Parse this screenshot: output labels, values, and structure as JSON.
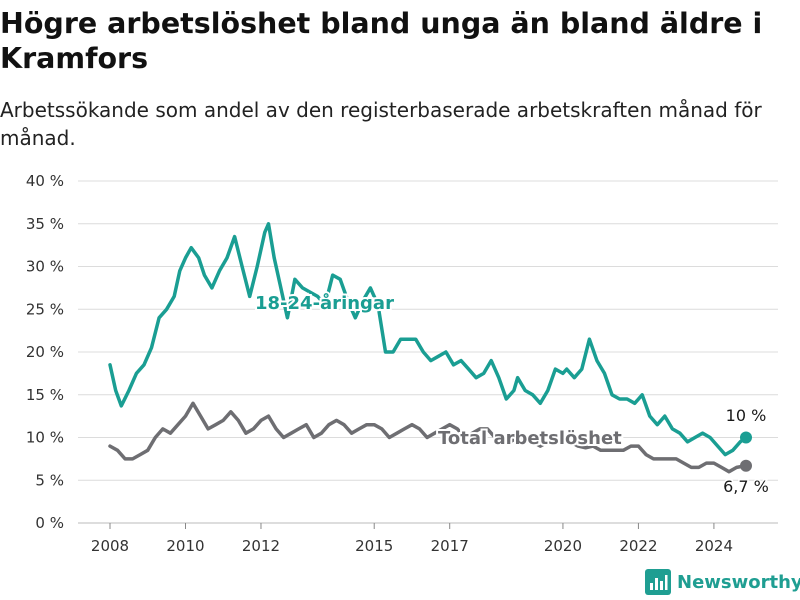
{
  "title": "Högre arbetslöshet bland unga än bland äldre i Kramfors",
  "subtitle": "Arbetssökande som andel av den registerbaserade arbetskraften månad för månad.",
  "brand": {
    "name": "Newsworthy"
  },
  "colors": {
    "youth": "#1a9e93",
    "total": "#6e6e72",
    "grid": "#dcdcdc",
    "axis": "#333333"
  },
  "chart_data": {
    "type": "line",
    "x_ticks": [
      "2008",
      "2010",
      "2012",
      "2015",
      "2017",
      "2020",
      "2022",
      "2024"
    ],
    "y_ticks": [
      "0 %",
      "5 %",
      "10 %",
      "15 %",
      "20 %",
      "25 %",
      "30 %",
      "35 %",
      "40 %"
    ],
    "ylim": [
      0,
      40
    ],
    "series": [
      {
        "name": "18-24-åringar",
        "end_label": "10 %",
        "points": [
          [
            2008.0,
            18.5
          ],
          [
            2008.15,
            15.5
          ],
          [
            2008.3,
            13.7
          ],
          [
            2008.5,
            15.5
          ],
          [
            2008.7,
            17.5
          ],
          [
            2008.9,
            18.5
          ],
          [
            2009.1,
            20.5
          ],
          [
            2009.3,
            24.0
          ],
          [
            2009.5,
            25.0
          ],
          [
            2009.7,
            26.5
          ],
          [
            2009.85,
            29.5
          ],
          [
            2010.0,
            31.0
          ],
          [
            2010.15,
            32.2
          ],
          [
            2010.35,
            31.0
          ],
          [
            2010.5,
            29.0
          ],
          [
            2010.7,
            27.5
          ],
          [
            2010.9,
            29.5
          ],
          [
            2011.1,
            31.0
          ],
          [
            2011.3,
            33.5
          ],
          [
            2011.5,
            30.0
          ],
          [
            2011.7,
            26.5
          ],
          [
            2011.9,
            30.0
          ],
          [
            2012.1,
            34.0
          ],
          [
            2012.2,
            35.0
          ],
          [
            2012.35,
            31.0
          ],
          [
            2012.5,
            28.0
          ],
          [
            2012.7,
            24.0
          ],
          [
            2012.9,
            28.5
          ],
          [
            2013.1,
            27.5
          ],
          [
            2013.3,
            27.0
          ],
          [
            2013.5,
            26.5
          ],
          [
            2013.7,
            25.5
          ],
          [
            2013.9,
            29.0
          ],
          [
            2014.1,
            28.5
          ],
          [
            2014.3,
            26.0
          ],
          [
            2014.5,
            24.0
          ],
          [
            2014.7,
            26.0
          ],
          [
            2014.9,
            27.5
          ],
          [
            2015.1,
            25.5
          ],
          [
            2015.3,
            20.0
          ],
          [
            2015.5,
            20.0
          ],
          [
            2015.7,
            21.5
          ],
          [
            2015.9,
            21.5
          ],
          [
            2016.1,
            21.5
          ],
          [
            2016.3,
            20.0
          ],
          [
            2016.5,
            19.0
          ],
          [
            2016.7,
            19.5
          ],
          [
            2016.9,
            20.0
          ],
          [
            2017.1,
            18.5
          ],
          [
            2017.3,
            19.0
          ],
          [
            2017.5,
            18.0
          ],
          [
            2017.7,
            17.0
          ],
          [
            2017.9,
            17.5
          ],
          [
            2018.1,
            19.0
          ],
          [
            2018.3,
            17.0
          ],
          [
            2018.5,
            14.5
          ],
          [
            2018.7,
            15.5
          ],
          [
            2018.8,
            17.0
          ],
          [
            2019.0,
            15.5
          ],
          [
            2019.2,
            15.0
          ],
          [
            2019.4,
            14.0
          ],
          [
            2019.6,
            15.5
          ],
          [
            2019.8,
            18.0
          ],
          [
            2020.0,
            17.5
          ],
          [
            2020.1,
            18.0
          ],
          [
            2020.3,
            17.0
          ],
          [
            2020.5,
            18.0
          ],
          [
            2020.7,
            21.5
          ],
          [
            2020.9,
            19.0
          ],
          [
            2021.1,
            17.5
          ],
          [
            2021.3,
            15.0
          ],
          [
            2021.5,
            14.5
          ],
          [
            2021.7,
            14.5
          ],
          [
            2021.9,
            14.0
          ],
          [
            2022.1,
            15.0
          ],
          [
            2022.3,
            12.5
          ],
          [
            2022.5,
            11.5
          ],
          [
            2022.7,
            12.5
          ],
          [
            2022.9,
            11.0
          ],
          [
            2023.1,
            10.5
          ],
          [
            2023.3,
            9.5
          ],
          [
            2023.5,
            10.0
          ],
          [
            2023.7,
            10.5
          ],
          [
            2023.9,
            10.0
          ],
          [
            2024.1,
            9.0
          ],
          [
            2024.3,
            8.0
          ],
          [
            2024.5,
            8.5
          ],
          [
            2024.7,
            9.5
          ],
          [
            2024.85,
            10.0
          ]
        ]
      },
      {
        "name": "Total arbetslöshet",
        "end_label": "6,7 %",
        "points": [
          [
            2008.0,
            9.0
          ],
          [
            2008.2,
            8.5
          ],
          [
            2008.4,
            7.5
          ],
          [
            2008.6,
            7.5
          ],
          [
            2008.8,
            8.0
          ],
          [
            2009.0,
            8.5
          ],
          [
            2009.2,
            10.0
          ],
          [
            2009.4,
            11.0
          ],
          [
            2009.6,
            10.5
          ],
          [
            2009.8,
            11.5
          ],
          [
            2010.0,
            12.5
          ],
          [
            2010.2,
            14.0
          ],
          [
            2010.4,
            12.5
          ],
          [
            2010.6,
            11.0
          ],
          [
            2010.8,
            11.5
          ],
          [
            2011.0,
            12.0
          ],
          [
            2011.2,
            13.0
          ],
          [
            2011.4,
            12.0
          ],
          [
            2011.6,
            10.5
          ],
          [
            2011.8,
            11.0
          ],
          [
            2012.0,
            12.0
          ],
          [
            2012.2,
            12.5
          ],
          [
            2012.4,
            11.0
          ],
          [
            2012.6,
            10.0
          ],
          [
            2012.8,
            10.5
          ],
          [
            2013.0,
            11.0
          ],
          [
            2013.2,
            11.5
          ],
          [
            2013.4,
            10.0
          ],
          [
            2013.6,
            10.5
          ],
          [
            2013.8,
            11.5
          ],
          [
            2014.0,
            12.0
          ],
          [
            2014.2,
            11.5
          ],
          [
            2014.4,
            10.5
          ],
          [
            2014.6,
            11.0
          ],
          [
            2014.8,
            11.5
          ],
          [
            2015.0,
            11.5
          ],
          [
            2015.2,
            11.0
          ],
          [
            2015.4,
            10.0
          ],
          [
            2015.6,
            10.5
          ],
          [
            2015.8,
            11.0
          ],
          [
            2016.0,
            11.5
          ],
          [
            2016.2,
            11.0
          ],
          [
            2016.4,
            10.0
          ],
          [
            2016.6,
            10.5
          ],
          [
            2016.8,
            11.0
          ],
          [
            2017.0,
            11.5
          ],
          [
            2017.2,
            11.0
          ],
          [
            2017.4,
            10.0
          ],
          [
            2017.6,
            10.5
          ],
          [
            2017.8,
            11.0
          ],
          [
            2018.0,
            11.0
          ],
          [
            2018.2,
            10.0
          ],
          [
            2018.4,
            9.5
          ],
          [
            2018.6,
            9.5
          ],
          [
            2018.8,
            10.0
          ],
          [
            2019.0,
            10.0
          ],
          [
            2019.2,
            9.5
          ],
          [
            2019.4,
            9.0
          ],
          [
            2019.6,
            9.5
          ],
          [
            2019.8,
            9.5
          ],
          [
            2020.0,
            10.0
          ],
          [
            2020.2,
            9.5
          ],
          [
            2020.4,
            9.0
          ],
          [
            2020.6,
            8.8
          ],
          [
            2020.8,
            9.0
          ],
          [
            2021.0,
            8.5
          ],
          [
            2021.2,
            8.5
          ],
          [
            2021.4,
            8.5
          ],
          [
            2021.6,
            8.5
          ],
          [
            2021.8,
            9.0
          ],
          [
            2022.0,
            9.0
          ],
          [
            2022.2,
            8.0
          ],
          [
            2022.4,
            7.5
          ],
          [
            2022.6,
            7.5
          ],
          [
            2022.8,
            7.5
          ],
          [
            2023.0,
            7.5
          ],
          [
            2023.2,
            7.0
          ],
          [
            2023.4,
            6.5
          ],
          [
            2023.6,
            6.5
          ],
          [
            2023.8,
            7.0
          ],
          [
            2024.0,
            7.0
          ],
          [
            2024.2,
            6.5
          ],
          [
            2024.4,
            6.0
          ],
          [
            2024.6,
            6.5
          ],
          [
            2024.85,
            6.7
          ]
        ]
      }
    ]
  }
}
